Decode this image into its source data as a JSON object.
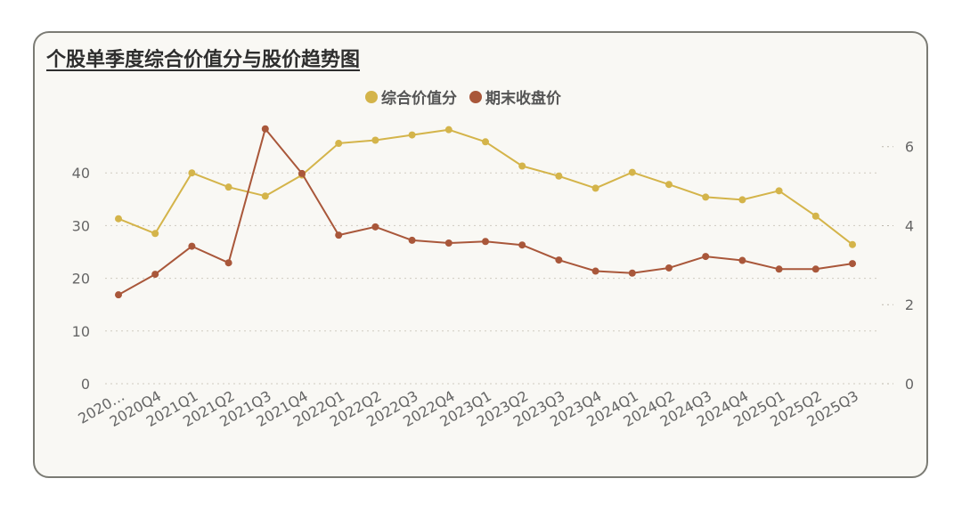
{
  "chart_data": {
    "type": "line",
    "title": "个股单季度综合价值分与股价趋势图",
    "categories": [
      "2020…",
      "2020Q4",
      "2021Q1",
      "2021Q2",
      "2021Q3",
      "2021Q4",
      "2022Q1",
      "2022Q2",
      "2022Q3",
      "2022Q4",
      "2023Q1",
      "2023Q2",
      "2023Q3",
      "2023Q4",
      "2024Q1",
      "2024Q2",
      "2024Q3",
      "2024Q4",
      "2025Q1",
      "2025Q2",
      "2025Q3"
    ],
    "series": [
      {
        "name": "综合价值分",
        "axis": "left",
        "color": "#d4b44a",
        "values": [
          31.3,
          28.5,
          40.0,
          37.3,
          35.6,
          39.6,
          45.6,
          46.2,
          47.2,
          48.2,
          45.9,
          41.3,
          39.4,
          37.1,
          40.1,
          37.8,
          35.4,
          34.9,
          36.6,
          31.8,
          26.4
        ]
      },
      {
        "name": "期末收盘价",
        "axis": "right",
        "color": "#a9573a",
        "values": [
          2.25,
          2.77,
          3.48,
          3.06,
          6.45,
          5.32,
          3.76,
          3.97,
          3.63,
          3.56,
          3.6,
          3.51,
          3.13,
          2.85,
          2.8,
          2.93,
          3.22,
          3.12,
          2.9,
          2.9,
          3.04
        ]
      }
    ],
    "y_left": {
      "ticks": [
        0,
        10,
        20,
        30,
        40
      ],
      "range": [
        0,
        50
      ]
    },
    "y_right": {
      "ticks": [
        0,
        2,
        4,
        6
      ],
      "range": [
        0,
        6.67
      ]
    },
    "grid": true,
    "legend_position": "top-center"
  }
}
